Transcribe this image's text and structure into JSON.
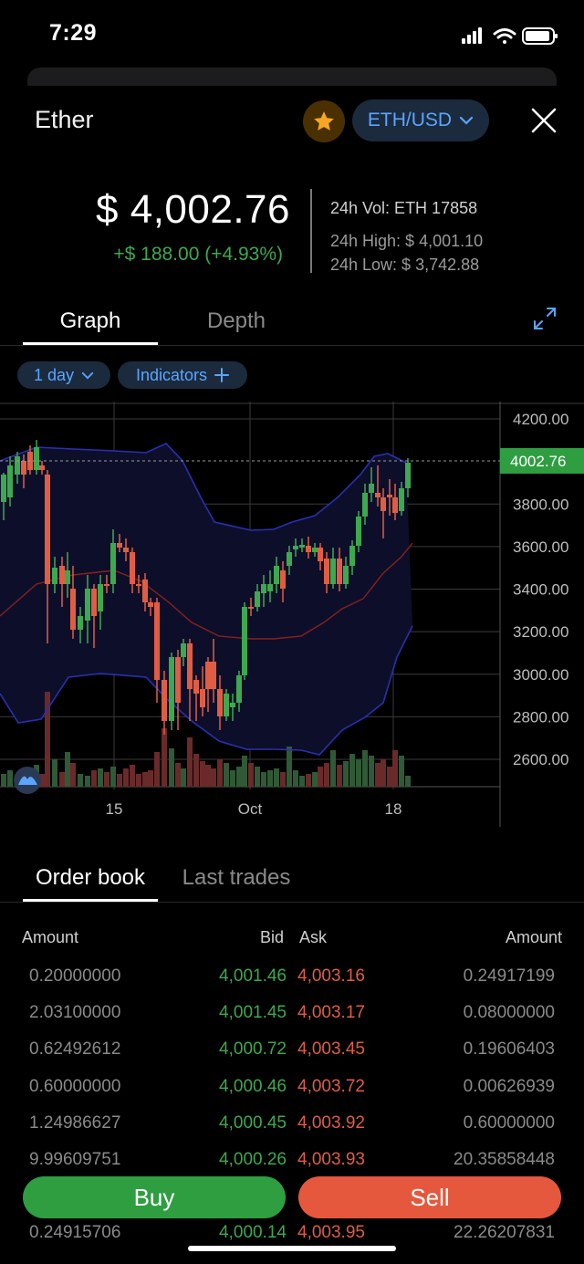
{
  "status_bar": {
    "time": "7:29"
  },
  "header": {
    "title": "Ether",
    "pair": "ETH/USD"
  },
  "ticker": {
    "price": "$ 4,002.76",
    "change": "+$ 188.00 (+4.93%)",
    "volume": "24h Vol: ETH  17858",
    "high": "24h High: $ 4,001.10",
    "low": "24h Low: $ 3,742.88"
  },
  "tabs": {
    "graph": "Graph",
    "depth": "Depth"
  },
  "controls": {
    "interval": "1 day",
    "indicators": "Indicators"
  },
  "chart": {
    "y_ticks": [
      "4200.00",
      "3800.00",
      "3600.00",
      "3400.00",
      "3200.00",
      "3000.00",
      "2800.00",
      "2600.00"
    ],
    "current_price_label": "4002.76",
    "x_ticks": [
      "15",
      "Oct",
      "18"
    ]
  },
  "chart_data": {
    "type": "candlestick",
    "y_axis": {
      "min": 2550,
      "max": 4250
    },
    "current_price": 4002.76,
    "x_labels": [
      "15",
      "Oct",
      "18"
    ]
  },
  "colors": {
    "up": "#3ea84f",
    "down": "#e05d44",
    "accent": "#5aa5ff",
    "price_tag": "#2e9e41"
  },
  "orderbook": {
    "tabs": {
      "order_book": "Order book",
      "last_trades": "Last trades"
    },
    "headers": {
      "amount_bid": "Amount",
      "bid": "Bid",
      "ask": "Ask",
      "amount_ask": "Amount"
    },
    "rows": [
      {
        "bid_amount": "0.20000000",
        "bid": "4,001.46",
        "ask": "4,003.16",
        "ask_amount": "0.24917199"
      },
      {
        "bid_amount": "2.03100000",
        "bid": "4,001.45",
        "ask": "4,003.17",
        "ask_amount": "0.08000000"
      },
      {
        "bid_amount": "0.62492612",
        "bid": "4,000.72",
        "ask": "4,003.45",
        "ask_amount": "0.19606403"
      },
      {
        "bid_amount": "0.60000000",
        "bid": "4,000.46",
        "ask": "4,003.72",
        "ask_amount": "0.00626939"
      },
      {
        "bid_amount": "1.24986627",
        "bid": "4,000.45",
        "ask": "4,003.92",
        "ask_amount": "0.60000000"
      },
      {
        "bid_amount": "9.99609751",
        "bid": "4,000.26",
        "ask": "4,003.93",
        "ask_amount": "20.35858448"
      },
      {
        "bid_amount": "0.24915706",
        "bid": "4,000.14",
        "ask": "4,003.95",
        "ask_amount": "22.26207831"
      }
    ]
  },
  "actions": {
    "buy": "Buy",
    "sell": "Sell"
  }
}
